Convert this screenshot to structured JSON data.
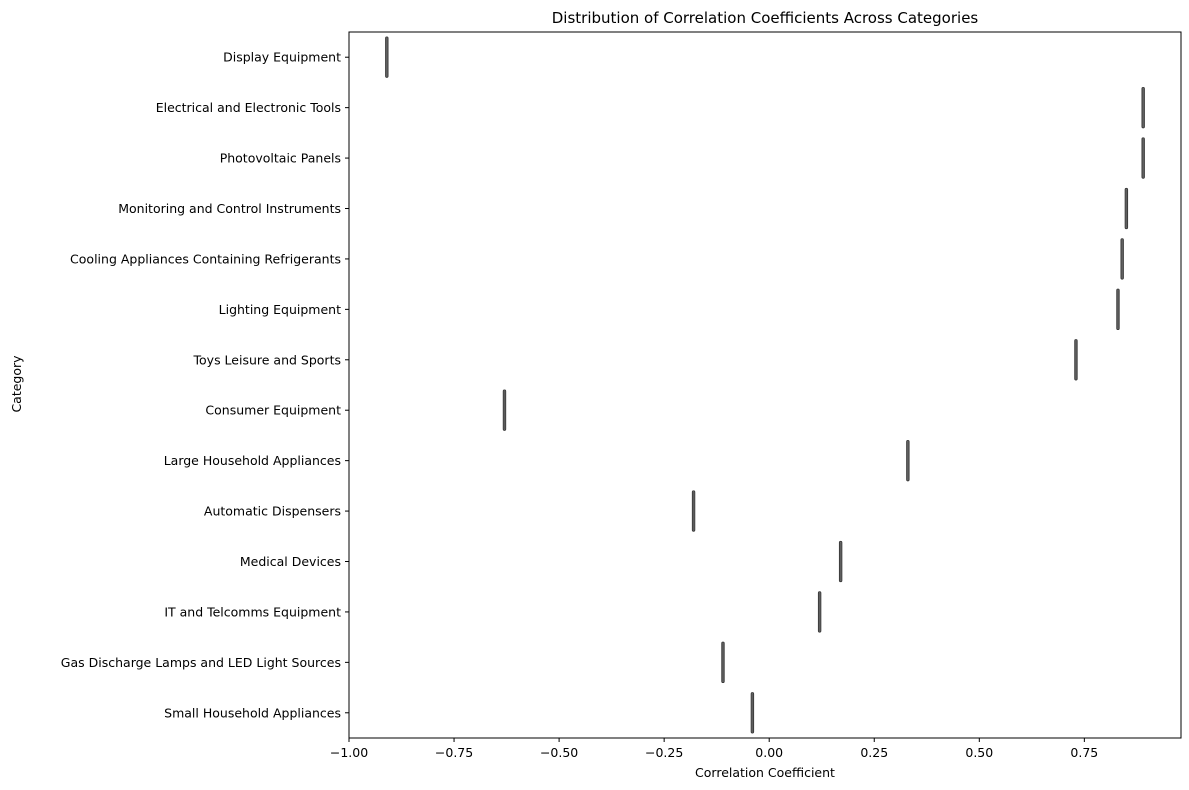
{
  "chart_data": {
    "type": "violin",
    "title": "Distribution of Correlation Coefficients Across Categories",
    "xlabel": "Correlation Coefficient",
    "ylabel": "Category",
    "xlim": [
      -1.0,
      0.98
    ],
    "x_ticks": [
      -1.0,
      -0.75,
      -0.5,
      -0.25,
      0.0,
      0.25,
      0.5,
      0.75
    ],
    "x_tick_labels": [
      "−1.00",
      "−0.75",
      "−0.50",
      "−0.25",
      "0.00",
      "0.25",
      "0.50",
      "0.75"
    ],
    "grid": false,
    "categories": [
      "Display Equipment",
      "Electrical and Electronic Tools",
      "Photovoltaic Panels",
      "Monitoring and Control Instruments",
      "Cooling Appliances Containing Refrigerants",
      "Lighting Equipment",
      "Toys Leisure and Sports",
      "Consumer Equipment",
      "Large Household Appliances",
      "Automatic Dispensers",
      "Medical Devices",
      "IT and Telcomms Equipment",
      "Gas Discharge Lamps and LED Light Sources",
      "Small Household Appliances"
    ],
    "values": [
      -0.91,
      0.89,
      0.89,
      0.85,
      0.84,
      0.83,
      0.73,
      -0.63,
      0.33,
      -0.18,
      0.17,
      0.12,
      -0.11,
      -0.04
    ],
    "mark_color": "#808080"
  }
}
